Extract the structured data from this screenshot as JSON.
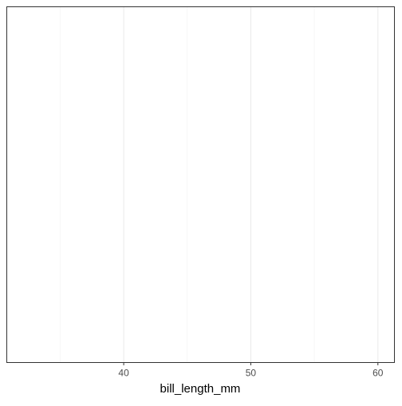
{
  "chart_data": {
    "type": "scatter",
    "title": "",
    "xlabel": "bill_length_mm",
    "ylabel": "",
    "xlim": [
      30.8,
      61.3
    ],
    "x_ticks": [
      40,
      50,
      60
    ],
    "x_tick_labels": [
      "40",
      "50",
      "60"
    ],
    "x_minor_gridlines": [
      35,
      45,
      55
    ],
    "grid": true,
    "legend": "none",
    "series": [],
    "colors": {
      "background": "#FFFFFF",
      "panel_border": "#333333",
      "major_grid": "#EBEBEB",
      "minor_grid": "#F2F2F2",
      "tick_text": "#4D4D4D",
      "axis_title": "#000000"
    }
  }
}
